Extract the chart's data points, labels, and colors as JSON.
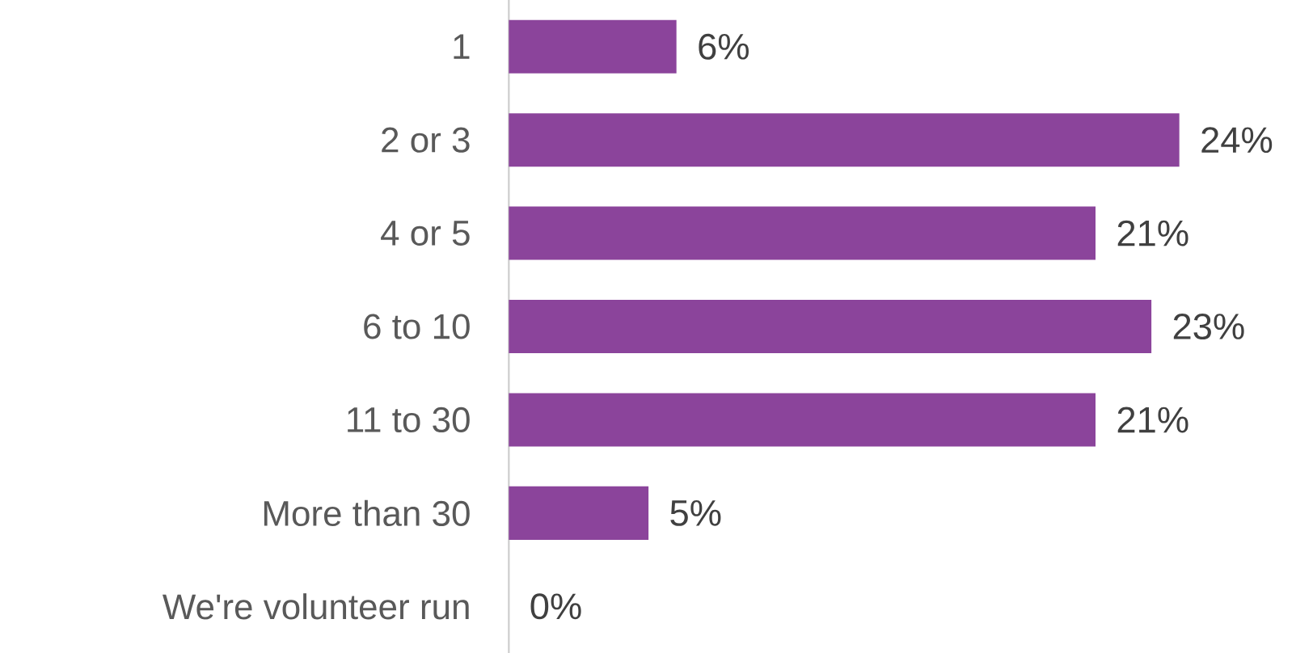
{
  "chart_data": {
    "type": "bar",
    "orientation": "horizontal",
    "categories": [
      "1",
      "2 or 3",
      "4 or 5",
      "6 to 10",
      "11 to 30",
      "More than 30",
      "We're volunteer run"
    ],
    "values": [
      6,
      24,
      21,
      23,
      21,
      5,
      0
    ],
    "value_labels": [
      "6%",
      "24%",
      "21%",
      "23%",
      "21%",
      "5%",
      "0%"
    ],
    "color": "#8b449b"
  }
}
